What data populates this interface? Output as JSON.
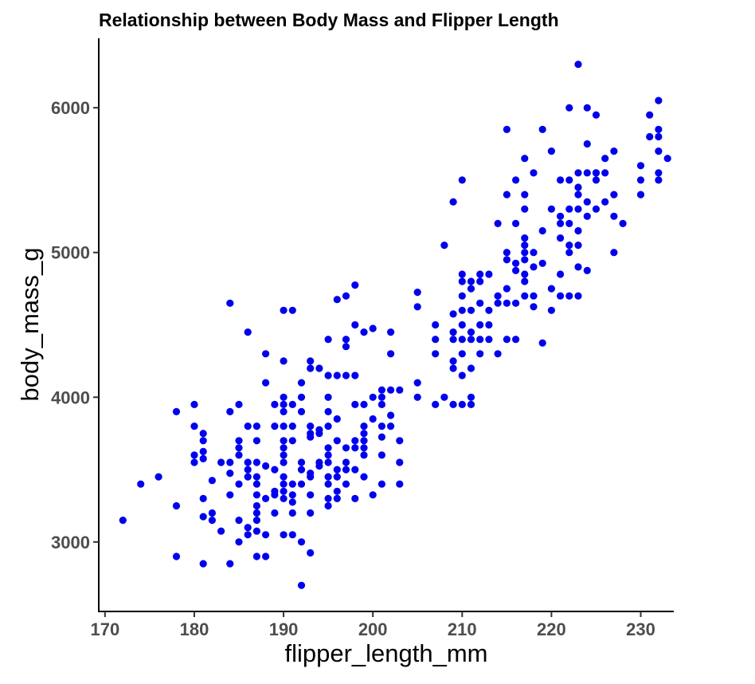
{
  "chart_data": {
    "type": "scatter",
    "title": "Relationship between Body Mass and Flipper Length",
    "xlabel": "flipper_length_mm",
    "ylabel": "body_mass_g",
    "xlim": [
      169.3,
      233.7
    ],
    "ylim": [
      2520,
      6480
    ],
    "xticks": [
      "170",
      "180",
      "190",
      "200",
      "210",
      "220",
      "230"
    ],
    "yticks": [
      "3000",
      "4000",
      "5000",
      "6000"
    ],
    "point_color": "#0000ee",
    "grid": false,
    "legend": "none",
    "points": [
      [
        172,
        3150
      ],
      [
        174,
        3400
      ],
      [
        176,
        3450
      ],
      [
        178,
        3900
      ],
      [
        178,
        3250
      ],
      [
        178,
        2900
      ],
      [
        180,
        3950
      ],
      [
        180,
        3800
      ],
      [
        180,
        3600
      ],
      [
        180,
        3550
      ],
      [
        181,
        3750
      ],
      [
        181,
        3700
      ],
      [
        181,
        3625
      ],
      [
        181,
        3575
      ],
      [
        181,
        3300
      ],
      [
        181,
        3175
      ],
      [
        181,
        2850
      ],
      [
        182,
        3425
      ],
      [
        182,
        3200
      ],
      [
        182,
        3150
      ],
      [
        183,
        3550
      ],
      [
        183,
        3075
      ],
      [
        184,
        4650
      ],
      [
        184,
        3900
      ],
      [
        184,
        3550
      ],
      [
        184,
        3475
      ],
      [
        184,
        3325
      ],
      [
        184,
        2850
      ],
      [
        185,
        3950
      ],
      [
        185,
        3700
      ],
      [
        185,
        3650
      ],
      [
        185,
        3600
      ],
      [
        185,
        3400
      ],
      [
        185,
        3150
      ],
      [
        185,
        3000
      ],
      [
        186,
        4450
      ],
      [
        186,
        3800
      ],
      [
        186,
        3550
      ],
      [
        186,
        3500
      ],
      [
        186,
        3450
      ],
      [
        186,
        3100
      ],
      [
        186,
        3050
      ],
      [
        187,
        3800
      ],
      [
        187,
        3700
      ],
      [
        187,
        3550
      ],
      [
        187,
        3450
      ],
      [
        187,
        3400
      ],
      [
        187,
        3325
      ],
      [
        187,
        3250
      ],
      [
        187,
        3200
      ],
      [
        187,
        3150
      ],
      [
        187,
        3075
      ],
      [
        187,
        2900
      ],
      [
        188,
        4300
      ],
      [
        188,
        4100
      ],
      [
        188,
        3525
      ],
      [
        188,
        3300
      ],
      [
        188,
        3050
      ],
      [
        188,
        2900
      ],
      [
        189,
        3950
      ],
      [
        189,
        3800
      ],
      [
        189,
        3500
      ],
      [
        189,
        3350
      ],
      [
        189,
        3325
      ],
      [
        189,
        3200
      ],
      [
        190,
        4600
      ],
      [
        190,
        4250
      ],
      [
        190,
        4000
      ],
      [
        190,
        3950
      ],
      [
        190,
        3900
      ],
      [
        190,
        3800
      ],
      [
        190,
        3700
      ],
      [
        190,
        3650
      ],
      [
        190,
        3600
      ],
      [
        190,
        3550
      ],
      [
        190,
        3450
      ],
      [
        190,
        3400
      ],
      [
        190,
        3350
      ],
      [
        190,
        3300
      ],
      [
        190,
        3050
      ],
      [
        191,
        4600
      ],
      [
        191,
        3950
      ],
      [
        191,
        3800
      ],
      [
        191,
        3700
      ],
      [
        191,
        3400
      ],
      [
        191,
        3325
      ],
      [
        191,
        3275
      ],
      [
        191,
        3200
      ],
      [
        191,
        3050
      ],
      [
        192,
        4100
      ],
      [
        192,
        4000
      ],
      [
        192,
        3900
      ],
      [
        192,
        3500
      ],
      [
        192,
        3550
      ],
      [
        192,
        3400
      ],
      [
        192,
        3000
      ],
      [
        192,
        2700
      ],
      [
        193,
        4250
      ],
      [
        193,
        4200
      ],
      [
        193,
        3800
      ],
      [
        193,
        3750
      ],
      [
        193,
        3725
      ],
      [
        193,
        3475
      ],
      [
        193,
        3450
      ],
      [
        193,
        3325
      ],
      [
        193,
        3200
      ],
      [
        193,
        2925
      ],
      [
        194,
        4200
      ],
      [
        194,
        3775
      ],
      [
        194,
        3750
      ],
      [
        194,
        3550
      ],
      [
        194,
        3525
      ],
      [
        195,
        4400
      ],
      [
        195,
        4150
      ],
      [
        195,
        4000
      ],
      [
        195,
        3900
      ],
      [
        195,
        3800
      ],
      [
        195,
        3650
      ],
      [
        195,
        3600
      ],
      [
        195,
        3550
      ],
      [
        195,
        3450
      ],
      [
        195,
        3400
      ],
      [
        195,
        3300
      ],
      [
        195,
        3250
      ],
      [
        196,
        4675
      ],
      [
        196,
        4150
      ],
      [
        196,
        3850
      ],
      [
        196,
        3700
      ],
      [
        196,
        3500
      ],
      [
        196,
        3450
      ],
      [
        196,
        3350
      ],
      [
        196,
        3300
      ],
      [
        197,
        4700
      ],
      [
        197,
        4400
      ],
      [
        197,
        4350
      ],
      [
        197,
        4150
      ],
      [
        197,
        3650
      ],
      [
        197,
        3550
      ],
      [
        197,
        3500
      ],
      [
        197,
        3400
      ],
      [
        198,
        4775
      ],
      [
        198,
        4500
      ],
      [
        198,
        4150
      ],
      [
        198,
        3950
      ],
      [
        198,
        3700
      ],
      [
        198,
        3650
      ],
      [
        198,
        3500
      ],
      [
        198,
        3300
      ],
      [
        199,
        4450
      ],
      [
        199,
        3950
      ],
      [
        199,
        3800
      ],
      [
        199,
        3700
      ],
      [
        199,
        3750
      ],
      [
        199,
        3650
      ],
      [
        199,
        3600
      ],
      [
        199,
        3450
      ],
      [
        200,
        4475
      ],
      [
        200,
        4000
      ],
      [
        200,
        3850
      ],
      [
        200,
        3325
      ],
      [
        201,
        4050
      ],
      [
        201,
        4000
      ],
      [
        201,
        3950
      ],
      [
        201,
        3800
      ],
      [
        201,
        3725
      ],
      [
        201,
        3600
      ],
      [
        201,
        3400
      ],
      [
        202,
        4450
      ],
      [
        202,
        4300
      ],
      [
        202,
        4050
      ],
      [
        202,
        3875
      ],
      [
        202,
        3800
      ],
      [
        203,
        4050
      ],
      [
        203,
        3700
      ],
      [
        203,
        3550
      ],
      [
        203,
        3400
      ],
      [
        205,
        4725
      ],
      [
        205,
        4625
      ],
      [
        205,
        4100
      ],
      [
        205,
        4000
      ],
      [
        207,
        4500
      ],
      [
        207,
        4400
      ],
      [
        207,
        4300
      ],
      [
        207,
        3950
      ],
      [
        208,
        5050
      ],
      [
        208,
        4000
      ],
      [
        209,
        5350
      ],
      [
        209,
        4575
      ],
      [
        209,
        4450
      ],
      [
        209,
        4400
      ],
      [
        209,
        4250
      ],
      [
        209,
        4200
      ],
      [
        209,
        3950
      ],
      [
        210,
        5500
      ],
      [
        210,
        4850
      ],
      [
        210,
        4800
      ],
      [
        210,
        4700
      ],
      [
        210,
        4600
      ],
      [
        210,
        4500
      ],
      [
        210,
        4400
      ],
      [
        210,
        4300
      ],
      [
        210,
        4150
      ],
      [
        210,
        3950
      ],
      [
        211,
        4800
      ],
      [
        211,
        4750
      ],
      [
        211,
        4600
      ],
      [
        211,
        4450
      ],
      [
        211,
        4400
      ],
      [
        211,
        4200
      ],
      [
        211,
        4000
      ],
      [
        211,
        3950
      ],
      [
        212,
        4850
      ],
      [
        212,
        4800
      ],
      [
        212,
        4650
      ],
      [
        212,
        4500
      ],
      [
        212,
        4400
      ],
      [
        212,
        4300
      ],
      [
        213,
        4850
      ],
      [
        213,
        4600
      ],
      [
        213,
        4500
      ],
      [
        213,
        4400
      ],
      [
        214,
        5200
      ],
      [
        214,
        4700
      ],
      [
        214,
        4650
      ],
      [
        214,
        4300
      ],
      [
        215,
        5850
      ],
      [
        215,
        5400
      ],
      [
        215,
        5000
      ],
      [
        215,
        4950
      ],
      [
        215,
        4750
      ],
      [
        215,
        4650
      ],
      [
        215,
        4400
      ],
      [
        216,
        5500
      ],
      [
        216,
        5200
      ],
      [
        216,
        4925
      ],
      [
        216,
        4875
      ],
      [
        216,
        4650
      ],
      [
        216,
        4400
      ],
      [
        217,
        5650
      ],
      [
        217,
        5400
      ],
      [
        217,
        5300
      ],
      [
        217,
        5100
      ],
      [
        217,
        5050
      ],
      [
        217,
        5000
      ],
      [
        217,
        4950
      ],
      [
        217,
        4850
      ],
      [
        217,
        4800
      ],
      [
        217,
        4700
      ],
      [
        218,
        5550
      ],
      [
        218,
        5000
      ],
      [
        218,
        4900
      ],
      [
        218,
        4700
      ],
      [
        218,
        4625
      ],
      [
        219,
        5850
      ],
      [
        219,
        5150
      ],
      [
        219,
        4925
      ],
      [
        219,
        4375
      ],
      [
        220,
        5700
      ],
      [
        220,
        5300
      ],
      [
        220,
        4750
      ],
      [
        220,
        4600
      ],
      [
        221,
        5500
      ],
      [
        221,
        5250
      ],
      [
        221,
        5200
      ],
      [
        221,
        5100
      ],
      [
        221,
        4850
      ],
      [
        221,
        4700
      ],
      [
        222,
        6000
      ],
      [
        222,
        5500
      ],
      [
        222,
        5300
      ],
      [
        222,
        5200
      ],
      [
        222,
        5050
      ],
      [
        222,
        5000
      ],
      [
        222,
        4700
      ],
      [
        223,
        6300
      ],
      [
        223,
        5550
      ],
      [
        223,
        5450
      ],
      [
        223,
        5400
      ],
      [
        223,
        5300
      ],
      [
        223,
        5150
      ],
      [
        223,
        5050
      ],
      [
        223,
        4900
      ],
      [
        223,
        4700
      ],
      [
        224,
        6000
      ],
      [
        224,
        5750
      ],
      [
        224,
        5550
      ],
      [
        224,
        5350
      ],
      [
        224,
        5250
      ],
      [
        224,
        4875
      ],
      [
        225,
        5950
      ],
      [
        225,
        5550
      ],
      [
        225,
        5550
      ],
      [
        225,
        5500
      ],
      [
        225,
        5300
      ],
      [
        226,
        5650
      ],
      [
        226,
        5550
      ],
      [
        226,
        5350
      ],
      [
        227,
        5700
      ],
      [
        227,
        5400
      ],
      [
        227,
        5250
      ],
      [
        227,
        5000
      ],
      [
        228,
        5200
      ],
      [
        230,
        5600
      ],
      [
        230,
        5500
      ],
      [
        230,
        5400
      ],
      [
        231,
        5950
      ],
      [
        231,
        5800
      ],
      [
        232,
        6050
      ],
      [
        232,
        5850
      ],
      [
        232,
        5800
      ],
      [
        232,
        5700
      ],
      [
        232,
        5550
      ],
      [
        232,
        5500
      ],
      [
        233,
        5650
      ]
    ]
  }
}
